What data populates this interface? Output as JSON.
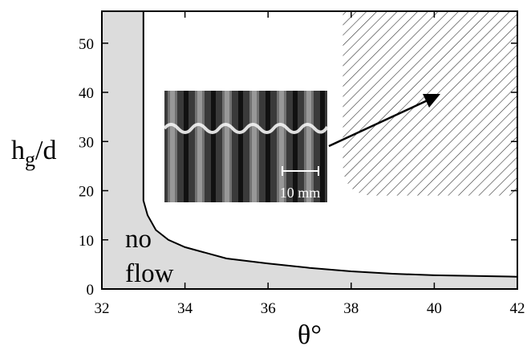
{
  "chart_data": {
    "type": "line",
    "x_label": "θ°",
    "y_label": {
      "main": "h",
      "sub": "g",
      "rest": "/d"
    },
    "xlim": [
      32,
      42
    ],
    "xticks": [
      32,
      34,
      36,
      38,
      40,
      42
    ],
    "ylim": [
      0,
      56.5
    ],
    "yticks": [
      0,
      10,
      20,
      30,
      40,
      50
    ],
    "series": [
      {
        "color": "#000000",
        "fill": "#dcdcdc",
        "x": [
          33,
          33,
          33.1,
          33.3,
          33.6,
          34,
          35,
          36,
          37,
          38,
          39,
          40,
          42
        ],
        "values": [
          56.5,
          18,
          15,
          12,
          10,
          8.5,
          6.2,
          5.2,
          4.3,
          3.6,
          3.1,
          2.8,
          2.5
        ]
      }
    ],
    "hatched_region": {
      "x": [
        37.8,
        42
      ],
      "y": [
        19,
        56.5
      ]
    },
    "annotations": {
      "region": [
        "no",
        "flow"
      ],
      "scale_bar": "10 mm"
    }
  }
}
